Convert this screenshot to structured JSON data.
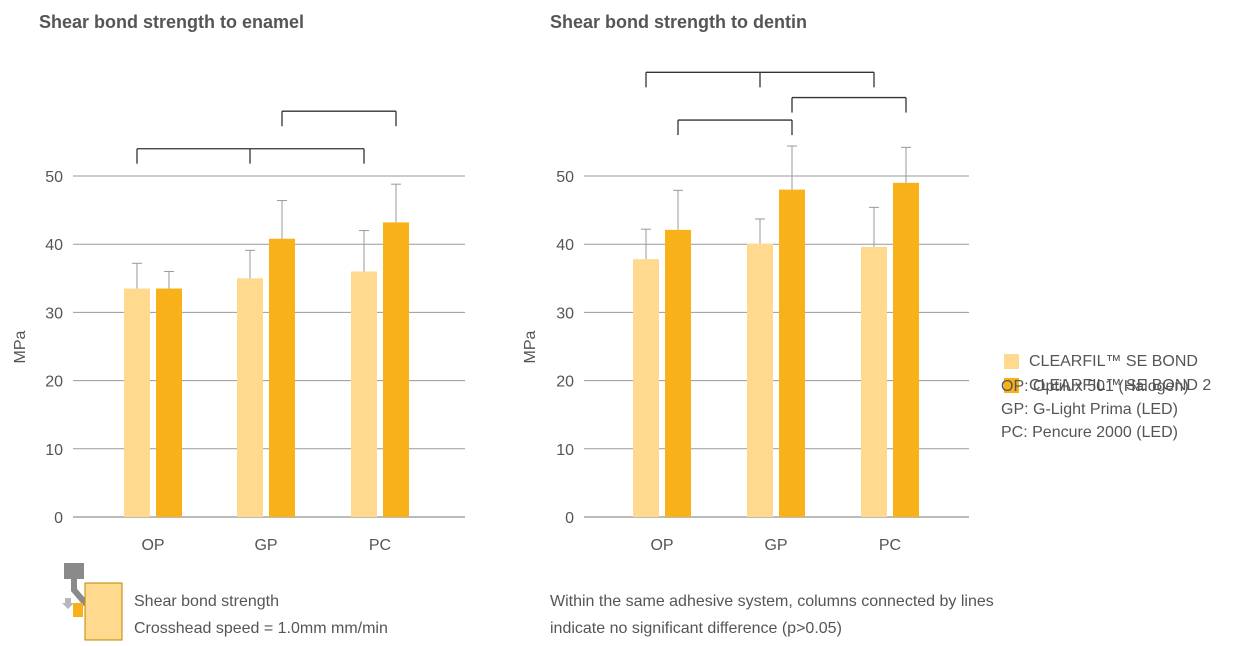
{
  "chart_data": [
    {
      "type": "bar",
      "title": "Shear bond strength to enamel",
      "ylabel": "MPa",
      "ylim": [
        0,
        50
      ],
      "yticks": [
        0,
        10,
        20,
        30,
        40,
        50
      ],
      "grid": true,
      "categories": [
        "OP",
        "GP",
        "PC"
      ],
      "series": [
        {
          "name": "CLEARFIL™ SE BOND",
          "color": "#FED98E",
          "values": [
            33.5,
            35.0,
            36.0
          ],
          "errors": [
            3.7,
            4.1,
            6.0
          ]
        },
        {
          "name": "CLEARFIL™ SE BOND 2",
          "color": "#F9B11A",
          "values": [
            33.5,
            40.8,
            43.2
          ],
          "errors": [
            2.5,
            5.6,
            5.6
          ]
        }
      ],
      "brackets": [
        {
          "series": 0,
          "categories": [
            0,
            1,
            2
          ],
          "level": 54.0
        },
        {
          "series": 1,
          "categories": [
            1,
            2
          ],
          "level": 59.5
        }
      ]
    },
    {
      "type": "bar",
      "title": "Shear bond strength to dentin",
      "ylabel": "MPa",
      "ylim": [
        0,
        50
      ],
      "yticks": [
        0,
        10,
        20,
        30,
        40,
        50
      ],
      "grid": true,
      "categories": [
        "OP",
        "GP",
        "PC"
      ],
      "series": [
        {
          "name": "CLEARFIL™ SE BOND",
          "color": "#FED98E",
          "values": [
            37.8,
            40.1,
            39.6
          ],
          "errors": [
            4.4,
            3.6,
            5.8
          ]
        },
        {
          "name": "CLEARFIL™ SE BOND 2",
          "color": "#F9B11A",
          "values": [
            42.1,
            48.0,
            49.0
          ],
          "errors": [
            5.8,
            6.4,
            5.2
          ]
        }
      ],
      "brackets": [
        {
          "series": 0,
          "categories": [
            0,
            1,
            2
          ],
          "level": 65.2
        },
        {
          "series": 1,
          "categories": [
            0,
            1
          ],
          "level": 58.2
        },
        {
          "series": 1,
          "categories": [
            1,
            2
          ],
          "level": 61.5
        }
      ]
    }
  ],
  "legend": {
    "items": [
      {
        "label": "CLEARFIL™ SE BOND",
        "color": "#FED98E"
      },
      {
        "label": "CLEARFIL™ SE BOND 2",
        "color": "#F9B11A"
      }
    ]
  },
  "glossary": [
    "OP: Optilux 501 (Halogen)",
    "GP: G-Light Prima (LED)",
    "PC: Pencure 2000 (LED)"
  ],
  "method_note": {
    "line1": "Shear bond strength",
    "line2": "Crosshead speed = 1.0mm mm/min"
  },
  "significance_note": {
    "line1": "Within the same adhesive system, columns connected by lines",
    "line2": "indicate no significant difference (p>0.05)"
  }
}
